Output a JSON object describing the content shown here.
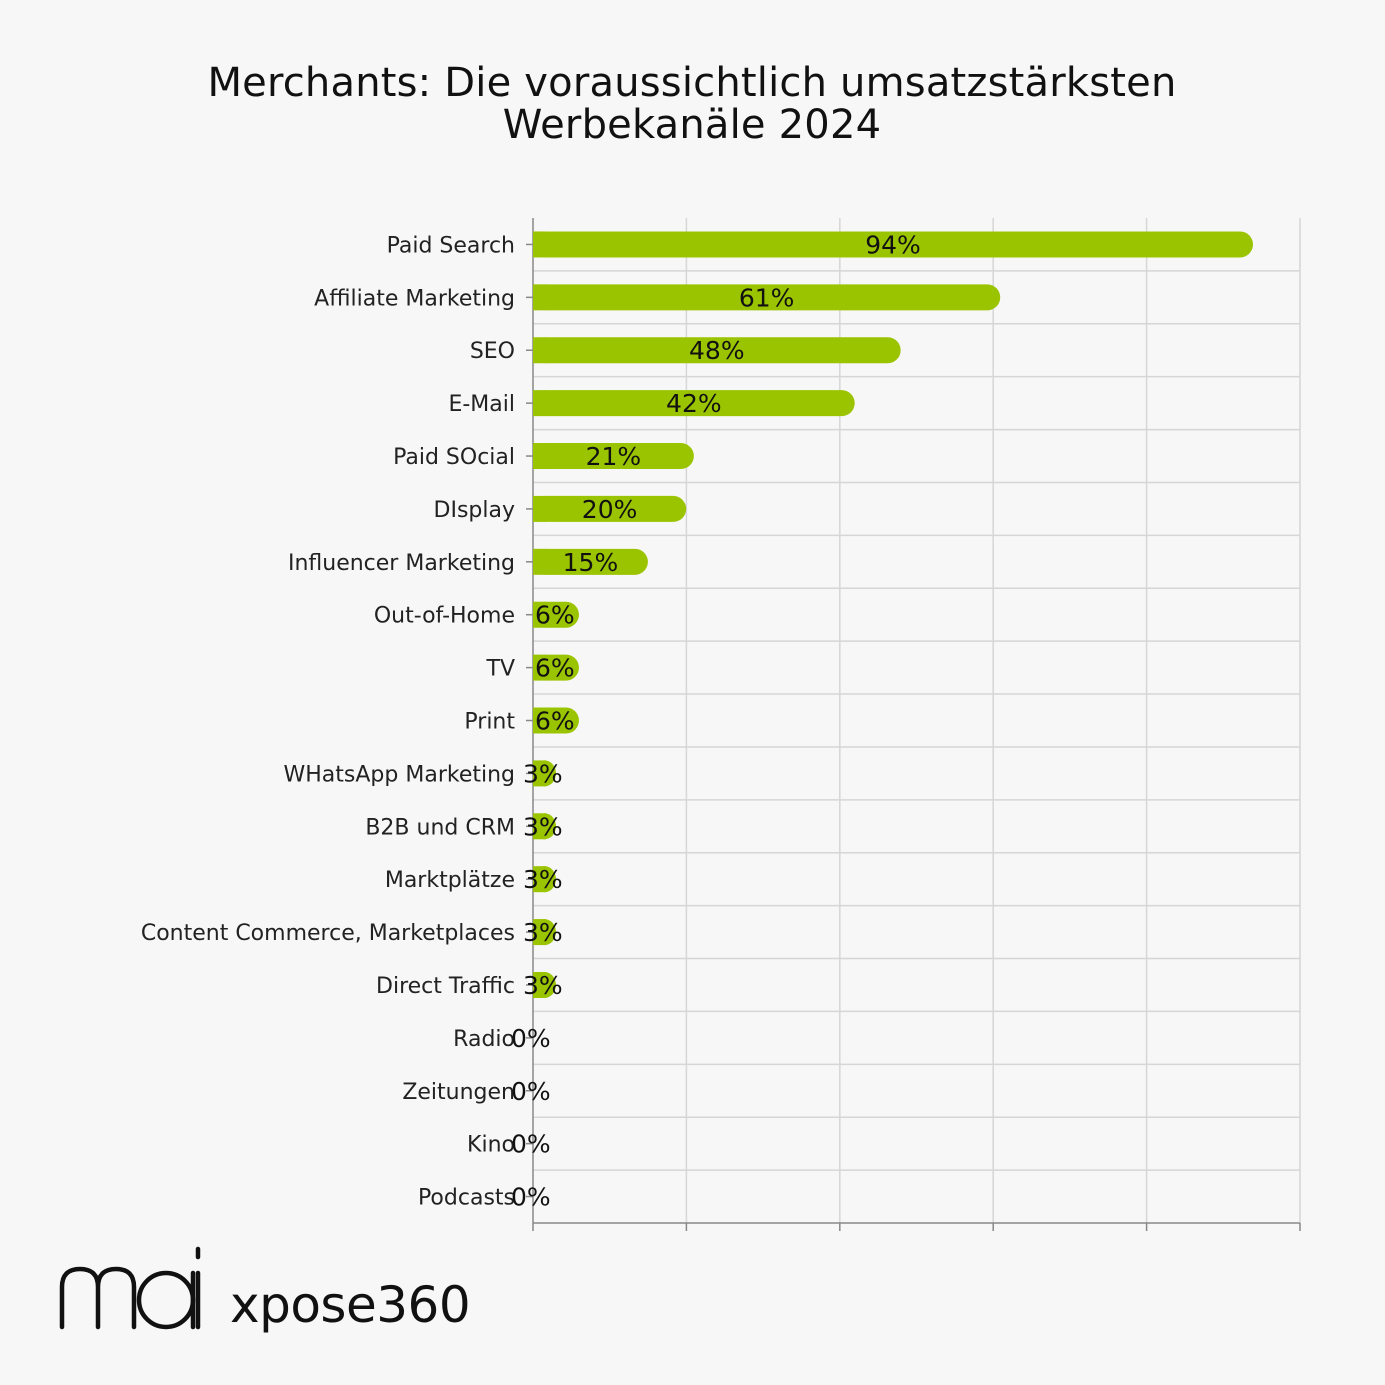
{
  "chart_data": {
    "type": "bar",
    "orientation": "horizontal",
    "title": "Merchants: Die voraussichtlich umsatzstärksten Werbekanäle 2024",
    "categories": [
      "Paid Search",
      "Affiliate Marketing",
      "SEO",
      "E-Mail",
      "Paid SOcial",
      "DIsplay",
      "Influencer Marketing",
      "Out-of-Home",
      "TV",
      "Print",
      "WHatsApp Marketing",
      "B2B und CRM",
      "Marktplätze",
      "Content Commerce, Marketplaces",
      "Direct Traffic",
      "Radio",
      "Zeitungen",
      "Kino",
      "Podcasts"
    ],
    "values": [
      94,
      61,
      48,
      42,
      21,
      20,
      15,
      6,
      6,
      6,
      3,
      3,
      3,
      3,
      3,
      0,
      0,
      0,
      0
    ],
    "data_labels": [
      "94%",
      "61%",
      "48%",
      "42%",
      "21%",
      "20%",
      "15%",
      "6%",
      "6%",
      "6%",
      "3%",
      "3%",
      "3%",
      "3%",
      "3%",
      "0%",
      "0%",
      "0%",
      "0%"
    ],
    "xlim": [
      0,
      100
    ],
    "xticks_count": 5,
    "xlabel": "",
    "ylabel": "",
    "grid": true,
    "bar_color": "#9bc400",
    "grid_color": "#d6d6d6",
    "axis_color": "#888888"
  },
  "branding": {
    "logo_mai": "mai",
    "logo_xpose": "xpose360"
  }
}
